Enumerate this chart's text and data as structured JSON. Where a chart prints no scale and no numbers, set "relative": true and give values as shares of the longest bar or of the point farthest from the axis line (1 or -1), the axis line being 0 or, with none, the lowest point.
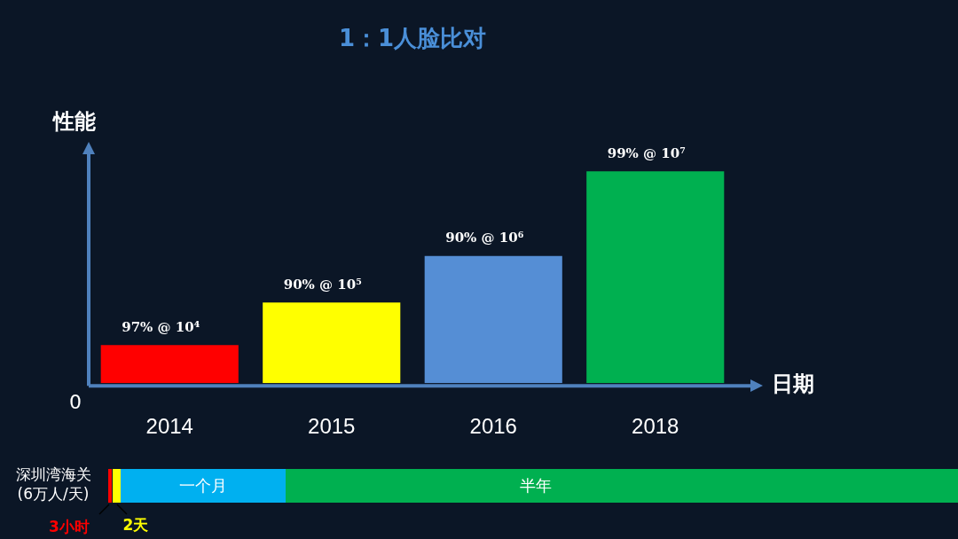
{
  "chart_data": [
    {
      "type": "bar",
      "title": "1：1人脸比对",
      "xlabel": "日期",
      "ylabel": "性能",
      "relative": true,
      "categories": [
        "2014",
        "2015",
        "2016",
        "2018"
      ],
      "values": [
        0.18,
        0.38,
        0.6,
        1
      ],
      "colors": [
        "#ff0000",
        "#ffff00",
        "#558ed5",
        "#00b050"
      ],
      "annotations": [
        {
          "text": "97% @ 10⁴",
          "x": "2014",
          "y": 0.18
        },
        {
          "text": "90% @ 10⁵",
          "x": "2015",
          "y": 0.38
        },
        {
          "text": "90% @ 10⁶",
          "x": "2016",
          "y": 0.6
        },
        {
          "text": "99% @ 10⁷",
          "x": "2018",
          "y": 1
        },
        "0"
      ],
      "legend": false
    },
    {
      "type": "other",
      "annotations": [
        "深圳湾海关(6万人/天)",
        "3小时",
        "2天",
        "一个月",
        "半年"
      ]
    }
  ]
}
